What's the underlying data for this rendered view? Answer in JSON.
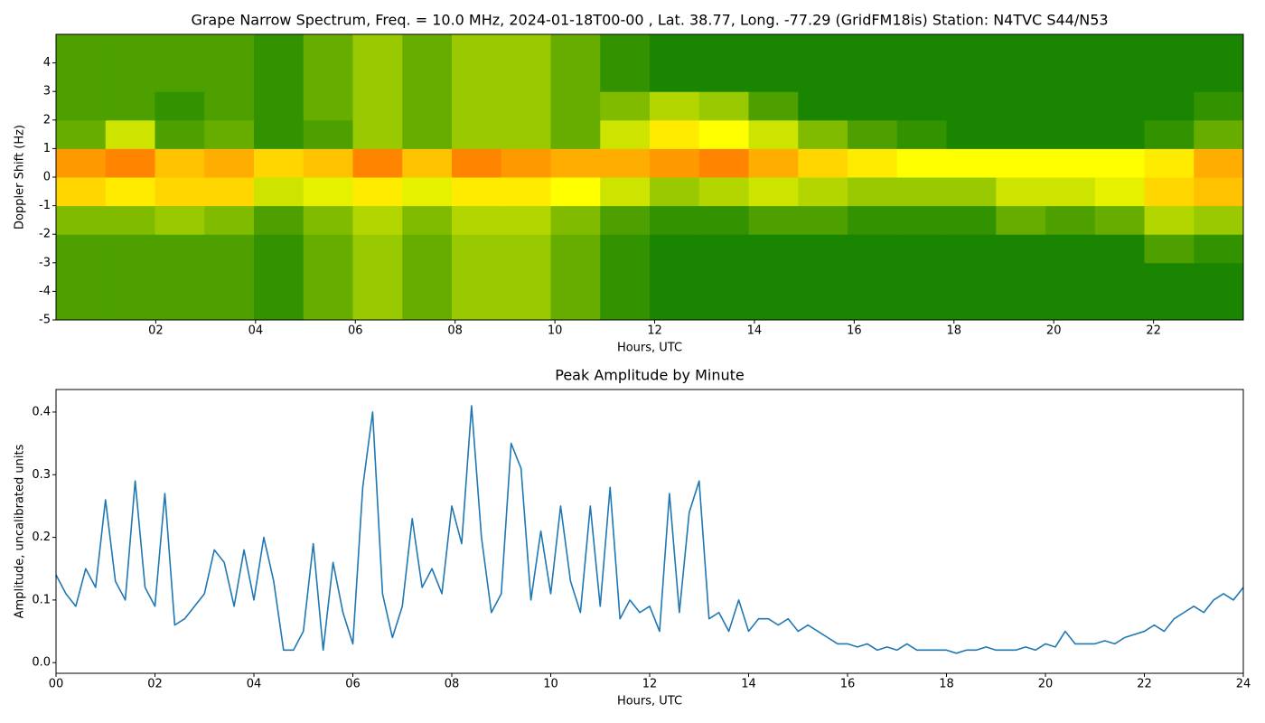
{
  "chart_data": [
    {
      "type": "heatmap",
      "title": "Grape Narrow Spectrum, Freq. = 10.0 MHz, 2024-01-18T00-00 , Lat.  38.77, Long. -77.29 (GridFM18is) Station: N4TVC S44/N53",
      "xlabel": "Hours, UTC",
      "ylabel": "Doppler Shift (Hz)",
      "xlim": [
        0,
        23.8
      ],
      "ylim": [
        -5,
        5
      ],
      "xticks": [
        {
          "value": 2,
          "label": "02"
        },
        {
          "value": 4,
          "label": "04"
        },
        {
          "value": 6,
          "label": "06"
        },
        {
          "value": 8,
          "label": "08"
        },
        {
          "value": 10,
          "label": "10"
        },
        {
          "value": 12,
          "label": "12"
        },
        {
          "value": 14,
          "label": "14"
        },
        {
          "value": 16,
          "label": "16"
        },
        {
          "value": 18,
          "label": "18"
        },
        {
          "value": 20,
          "label": "20"
        },
        {
          "value": 22,
          "label": "22"
        }
      ],
      "yticks": [
        -5,
        -4,
        -3,
        -2,
        -1,
        0,
        1,
        2,
        3,
        4
      ],
      "colorscale": [
        "#007700",
        "#ffff00",
        "#ff3300"
      ],
      "z": [
        [
          0.15,
          0.15,
          0.15,
          0.15,
          0.1,
          0.2,
          0.3,
          0.2,
          0.3,
          0.3,
          0.2,
          0.1,
          0.05,
          0.05,
          0.05,
          0.05,
          0.05,
          0.05,
          0.05,
          0.05,
          0.05,
          0.05,
          0.05,
          0.05
        ],
        [
          0.15,
          0.15,
          0.15,
          0.15,
          0.1,
          0.2,
          0.3,
          0.2,
          0.3,
          0.3,
          0.2,
          0.1,
          0.05,
          0.05,
          0.05,
          0.05,
          0.05,
          0.05,
          0.05,
          0.05,
          0.05,
          0.05,
          0.05,
          0.05
        ],
        [
          0.15,
          0.15,
          0.15,
          0.15,
          0.1,
          0.2,
          0.3,
          0.2,
          0.3,
          0.3,
          0.2,
          0.1,
          0.05,
          0.05,
          0.05,
          0.05,
          0.05,
          0.05,
          0.05,
          0.05,
          0.05,
          0.05,
          0.15,
          0.1
        ],
        [
          0.25,
          0.25,
          0.3,
          0.25,
          0.15,
          0.25,
          0.35,
          0.25,
          0.35,
          0.35,
          0.25,
          0.15,
          0.1,
          0.1,
          0.15,
          0.15,
          0.1,
          0.1,
          0.1,
          0.2,
          0.15,
          0.2,
          0.35,
          0.3
        ],
        [
          0.6,
          0.55,
          0.6,
          0.6,
          0.4,
          0.45,
          0.55,
          0.45,
          0.55,
          0.55,
          0.5,
          0.4,
          0.3,
          0.35,
          0.4,
          0.35,
          0.3,
          0.3,
          0.3,
          0.4,
          0.4,
          0.45,
          0.6,
          0.65
        ],
        [
          0.75,
          0.8,
          0.65,
          0.7,
          0.6,
          0.65,
          0.8,
          0.65,
          0.8,
          0.75,
          0.7,
          0.7,
          0.75,
          0.8,
          0.7,
          0.6,
          0.55,
          0.5,
          0.5,
          0.5,
          0.5,
          0.5,
          0.55,
          0.7
        ],
        [
          0.2,
          0.4,
          0.15,
          0.2,
          0.1,
          0.15,
          0.3,
          0.2,
          0.3,
          0.3,
          0.2,
          0.4,
          0.55,
          0.5,
          0.4,
          0.25,
          0.15,
          0.1,
          0.05,
          0.05,
          0.05,
          0.05,
          0.1,
          0.2
        ],
        [
          0.15,
          0.15,
          0.1,
          0.15,
          0.1,
          0.2,
          0.3,
          0.2,
          0.3,
          0.3,
          0.2,
          0.25,
          0.35,
          0.3,
          0.15,
          0.05,
          0.05,
          0.05,
          0.05,
          0.05,
          0.05,
          0.05,
          0.05,
          0.1
        ],
        [
          0.15,
          0.15,
          0.15,
          0.15,
          0.1,
          0.2,
          0.3,
          0.2,
          0.3,
          0.3,
          0.2,
          0.1,
          0.05,
          0.05,
          0.05,
          0.05,
          0.05,
          0.05,
          0.05,
          0.05,
          0.05,
          0.05,
          0.05,
          0.05
        ],
        [
          0.15,
          0.15,
          0.15,
          0.15,
          0.1,
          0.2,
          0.3,
          0.2,
          0.3,
          0.3,
          0.2,
          0.1,
          0.05,
          0.05,
          0.05,
          0.05,
          0.05,
          0.05,
          0.05,
          0.05,
          0.05,
          0.05,
          0.05,
          0.05
        ]
      ]
    },
    {
      "type": "line",
      "title": "Peak Amplitude by Minute",
      "xlabel": "Hours, UTC",
      "ylabel": "Amplitude, uncalibrated units",
      "xlim": [
        0,
        24
      ],
      "ylim": [
        -0.017,
        0.436
      ],
      "xticks": [
        {
          "value": 0,
          "label": "00"
        },
        {
          "value": 2,
          "label": "02"
        },
        {
          "value": 4,
          "label": "04"
        },
        {
          "value": 6,
          "label": "06"
        },
        {
          "value": 8,
          "label": "08"
        },
        {
          "value": 10,
          "label": "10"
        },
        {
          "value": 12,
          "label": "12"
        },
        {
          "value": 14,
          "label": "14"
        },
        {
          "value": 16,
          "label": "16"
        },
        {
          "value": 18,
          "label": "18"
        },
        {
          "value": 20,
          "label": "20"
        },
        {
          "value": 22,
          "label": "22"
        },
        {
          "value": 24,
          "label": "24"
        }
      ],
      "yticks": [
        {
          "value": 0,
          "label": "0.0"
        },
        0.1,
        0.2,
        0.3,
        0.4
      ],
      "color": "#1f77b4",
      "x": [
        0,
        0.2,
        0.4,
        0.6,
        0.8,
        1,
        1.2,
        1.4,
        1.6,
        1.8,
        2,
        2.2,
        2.4,
        2.6,
        2.8,
        3,
        3.2,
        3.4,
        3.6,
        3.8,
        4,
        4.2,
        4.4,
        4.6,
        4.8,
        5,
        5.2,
        5.4,
        5.6,
        5.8,
        6,
        6.2,
        6.4,
        6.6,
        6.8,
        7,
        7.2,
        7.4,
        7.6,
        7.8,
        8,
        8.2,
        8.4,
        8.6,
        8.8,
        9,
        9.2,
        9.4,
        9.6,
        9.8,
        10,
        10.2,
        10.4,
        10.6,
        10.8,
        11,
        11.2,
        11.4,
        11.6,
        11.8,
        12,
        12.2,
        12.4,
        12.6,
        12.8,
        13,
        13.2,
        13.4,
        13.6,
        13.8,
        14,
        14.2,
        14.4,
        14.6,
        14.8,
        15,
        15.2,
        15.4,
        15.6,
        15.8,
        16,
        16.2,
        16.4,
        16.6,
        16.8,
        17,
        17.2,
        17.4,
        17.6,
        17.8,
        18,
        18.2,
        18.4,
        18.6,
        18.8,
        19,
        19.2,
        19.4,
        19.6,
        19.8,
        20,
        20.2,
        20.4,
        20.6,
        20.8,
        21,
        21.2,
        21.4,
        21.6,
        21.8,
        22,
        22.2,
        22.4,
        22.6,
        22.8,
        23,
        23.2,
        23.4,
        23.6,
        23.8,
        24
      ],
      "values": [
        0.14,
        0.11,
        0.09,
        0.15,
        0.12,
        0.26,
        0.13,
        0.1,
        0.29,
        0.12,
        0.09,
        0.27,
        0.06,
        0.07,
        0.09,
        0.11,
        0.18,
        0.16,
        0.09,
        0.18,
        0.1,
        0.2,
        0.13,
        0.02,
        0.02,
        0.05,
        0.19,
        0.02,
        0.16,
        0.08,
        0.03,
        0.28,
        0.4,
        0.11,
        0.04,
        0.09,
        0.23,
        0.12,
        0.15,
        0.11,
        0.25,
        0.19,
        0.41,
        0.2,
        0.08,
        0.11,
        0.35,
        0.31,
        0.1,
        0.21,
        0.11,
        0.25,
        0.13,
        0.08,
        0.25,
        0.09,
        0.28,
        0.07,
        0.1,
        0.08,
        0.09,
        0.05,
        0.27,
        0.08,
        0.24,
        0.29,
        0.07,
        0.08,
        0.05,
        0.1,
        0.05,
        0.07,
        0.07,
        0.06,
        0.07,
        0.05,
        0.06,
        0.05,
        0.04,
        0.03,
        0.03,
        0.025,
        0.03,
        0.02,
        0.025,
        0.02,
        0.03,
        0.02,
        0.02,
        0.02,
        0.02,
        0.015,
        0.02,
        0.02,
        0.025,
        0.02,
        0.02,
        0.02,
        0.025,
        0.02,
        0.03,
        0.025,
        0.05,
        0.03,
        0.03,
        0.03,
        0.035,
        0.03,
        0.04,
        0.045,
        0.05,
        0.06,
        0.05,
        0.07,
        0.08,
        0.09,
        0.08,
        0.1,
        0.11,
        0.1,
        0.12
      ]
    }
  ]
}
